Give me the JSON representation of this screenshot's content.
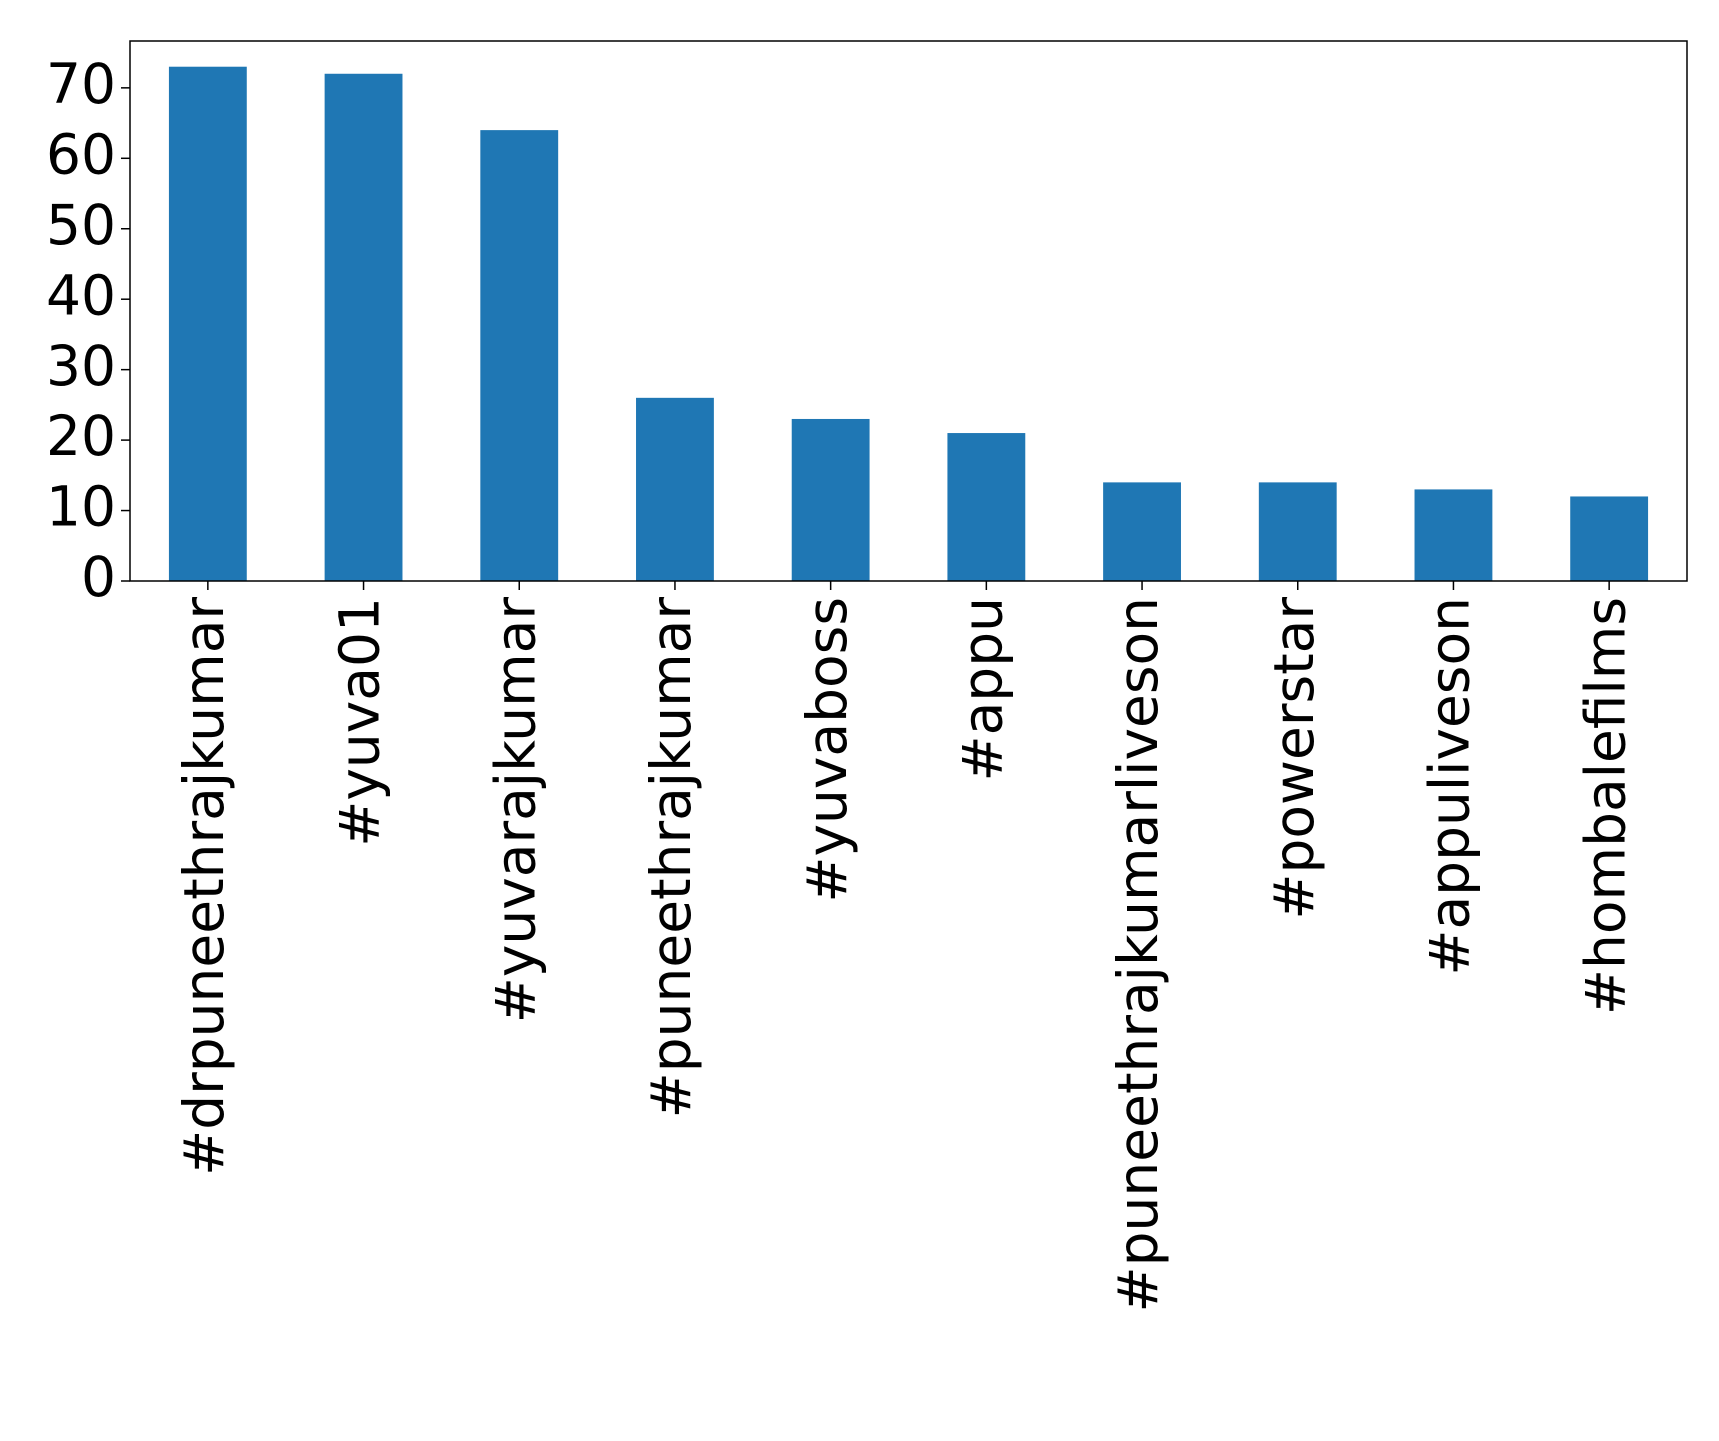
{
  "chart_data": {
    "type": "bar",
    "categories": [
      "#drpuneethrajkumar",
      "#yuva01",
      "#yuvarajkumar",
      "#puneethrajkumar",
      "#yuvaboss",
      "#appu",
      "#puneethrajkumarliveson",
      "#powerstar",
      "#appuliveson",
      "#hombalefilms"
    ],
    "values": [
      73,
      72,
      64,
      26,
      23,
      21,
      14,
      14,
      13,
      12
    ],
    "color": "#1f77b4",
    "ylim": [
      0,
      76.65
    ],
    "yticks": [
      0,
      10,
      20,
      30,
      40,
      50,
      60,
      70
    ],
    "grid": false
  }
}
